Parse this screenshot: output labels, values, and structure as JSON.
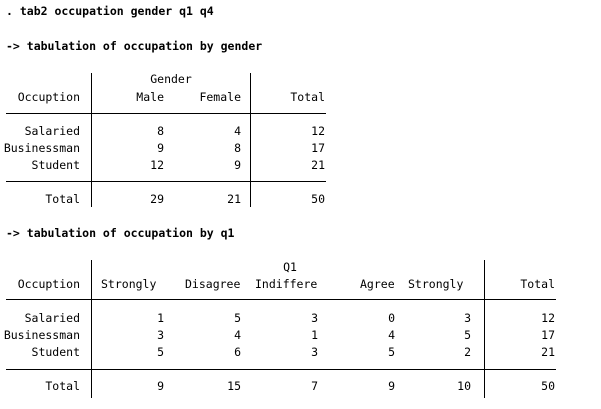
{
  "command": ". tab2 occupation gender q1 q4",
  "table1": {
    "heading": "-> tabulation of occupation by gender",
    "var_label": "Gender",
    "row_header": "Occuption",
    "col_male": "Male",
    "col_female": "Female",
    "col_total": "Total",
    "rows": [
      {
        "label": "Salaried",
        "male": "8",
        "female": "4",
        "total": "12"
      },
      {
        "label": "Businessman",
        "male": "9",
        "female": "8",
        "total": "17"
      },
      {
        "label": "Student",
        "male": "12",
        "female": "9",
        "total": "21"
      }
    ],
    "total_row": {
      "label": "Total",
      "male": "29",
      "female": "21",
      "total": "50"
    }
  },
  "table2": {
    "heading": "-> tabulation of occupation by q1",
    "var_label": "Q1",
    "row_header": "Occuption",
    "cols": [
      "Strongly",
      "Disagree",
      "Indiffere",
      "Agree",
      "Strongly"
    ],
    "col_total": "Total",
    "rows": [
      {
        "label": "Salaried",
        "values": [
          "1",
          "5",
          "3",
          "0",
          "3"
        ],
        "total": "12"
      },
      {
        "label": "Businessman",
        "values": [
          "3",
          "4",
          "1",
          "4",
          "5"
        ],
        "total": "17"
      },
      {
        "label": "Student",
        "values": [
          "5",
          "6",
          "3",
          "5",
          "2"
        ],
        "total": "21"
      }
    ],
    "total_row": {
      "label": "Total",
      "values": [
        "9",
        "15",
        "7",
        "9",
        "10"
      ],
      "total": "50"
    }
  }
}
